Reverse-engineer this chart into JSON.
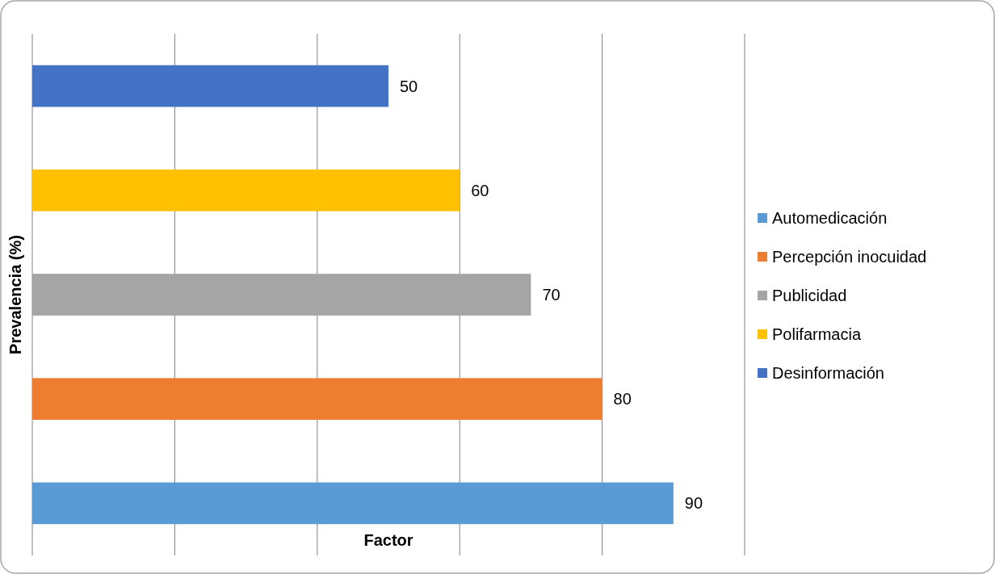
{
  "chart_data": {
    "type": "bar",
    "orientation": "horizontal",
    "stacked": true,
    "xlabel": "Factor",
    "ylabel": "Prevalencia (%)",
    "categories": [
      null,
      null,
      null,
      null,
      null
    ],
    "series": [
      {
        "name": "Automedicación",
        "color": "#5b9bd5",
        "values": [
          null,
          null,
          null,
          null,
          90
        ]
      },
      {
        "name": "Percepción inocuidad",
        "color": "#ed7d31",
        "values": [
          null,
          null,
          null,
          80,
          null
        ]
      },
      {
        "name": "Publicidad",
        "color": "#a5a5a5",
        "values": [
          null,
          null,
          70,
          null,
          null
        ]
      },
      {
        "name": "Polifarmacia",
        "color": "#ffc000",
        "values": [
          null,
          60,
          null,
          null,
          null
        ]
      },
      {
        "name": "Desinformación",
        "color": "#4472c4",
        "values": [
          50,
          null,
          null,
          null,
          null
        ]
      }
    ],
    "xlim": [
      0,
      100
    ],
    "xticks": [
      {
        "value": 0,
        "label": null
      },
      {
        "value": 20,
        "label": null
      },
      {
        "value": 40,
        "label": null
      },
      {
        "value": 60,
        "label": null
      },
      {
        "value": 80,
        "label": null
      },
      {
        "value": 100,
        "label": null
      }
    ],
    "grid": "x",
    "legend": "right",
    "data_labels": true
  }
}
